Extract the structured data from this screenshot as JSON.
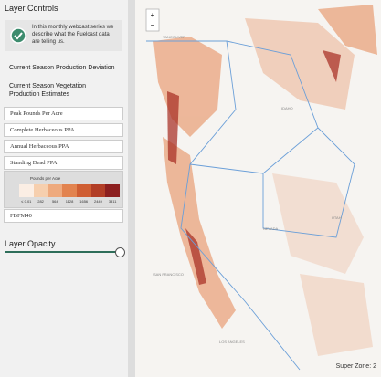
{
  "sidebar": {
    "title": "Layer Controls",
    "info": "In this monthly webcast series we describe what the Fuelcast data are telling us.",
    "groups": [
      "Current Season Production Deviation",
      "Current Season Vegetation Production Estimates"
    ],
    "layers": [
      "Peak Pounds Per Acre",
      "Complete Herbaceous PPA",
      "Annual Herbaceous PPA",
      "Standing Dead PPA"
    ],
    "legend": {
      "title": "Pounds per Acre",
      "labels": [
        "≤ 0.01",
        "282",
        "564",
        "1128",
        "1656",
        "2449",
        "3311"
      ],
      "colors": [
        "#fbeee4",
        "#f6cfae",
        "#eeaa7e",
        "#e2834f",
        "#cf5e33",
        "#b23e26",
        "#8c1f1f"
      ]
    },
    "extra_layer": "FBFM40",
    "opacity_title": "Layer Opacity"
  },
  "map": {
    "zoom_in": "+",
    "zoom_out": "−",
    "zone": "Super Zone: 2",
    "places": [
      "VANCOUVER",
      "IDAHO",
      "NEVADA",
      "UTAH",
      "SAN FRANCISCO",
      "LOS ANGELES"
    ]
  }
}
